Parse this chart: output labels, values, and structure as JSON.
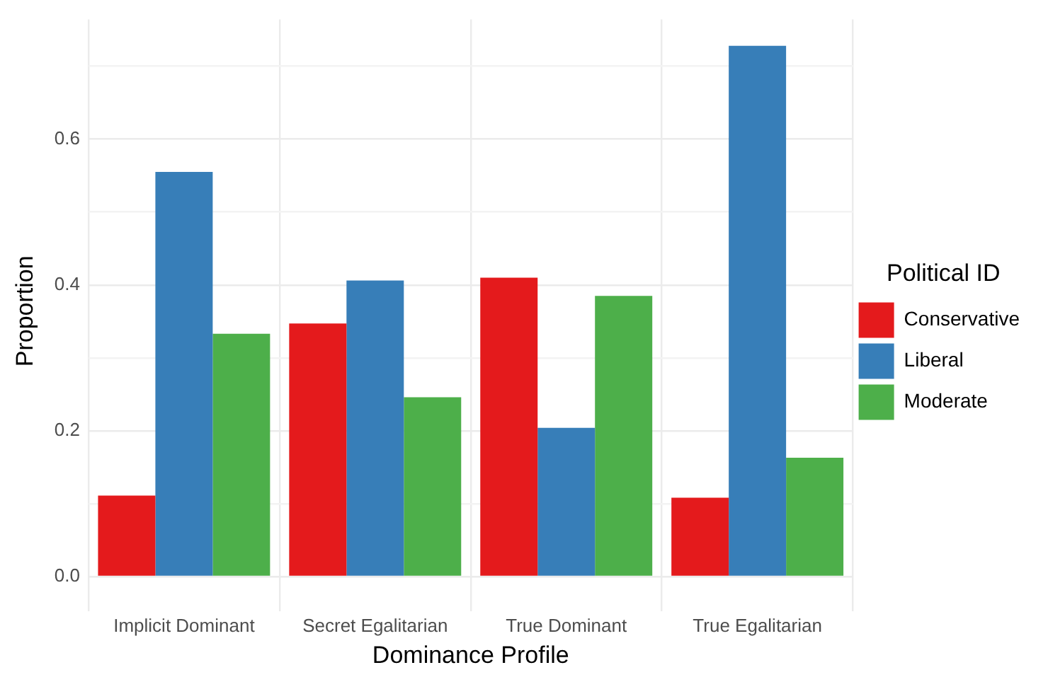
{
  "chart_data": {
    "type": "bar",
    "xlabel": "Dominance Profile",
    "ylabel": "Proportion",
    "legend_title": "Political ID",
    "categories": [
      "Implicit Dominant",
      "Secret Egalitarian",
      "True Dominant",
      "True Egalitarian"
    ],
    "series": [
      {
        "name": "Conservative",
        "color": "#e41a1c",
        "values": [
          0.111,
          0.347,
          0.41,
          0.108
        ]
      },
      {
        "name": "Liberal",
        "color": "#377eb8",
        "values": [
          0.555,
          0.406,
          0.204,
          0.728
        ]
      },
      {
        "name": "Moderate",
        "color": "#4daf4a",
        "values": [
          0.333,
          0.246,
          0.385,
          0.163
        ]
      }
    ],
    "ylim": [
      -0.036,
      0.764
    ],
    "yticks": [
      {
        "value": 0,
        "label": "0.0"
      },
      {
        "value": 0.1,
        "label": null
      },
      0.2,
      {
        "value": 0.3,
        "label": null
      },
      0.4,
      {
        "value": 0.5,
        "label": null
      },
      0.6,
      {
        "value": 0.7,
        "label": null
      }
    ],
    "grid": true,
    "legend": "right"
  }
}
